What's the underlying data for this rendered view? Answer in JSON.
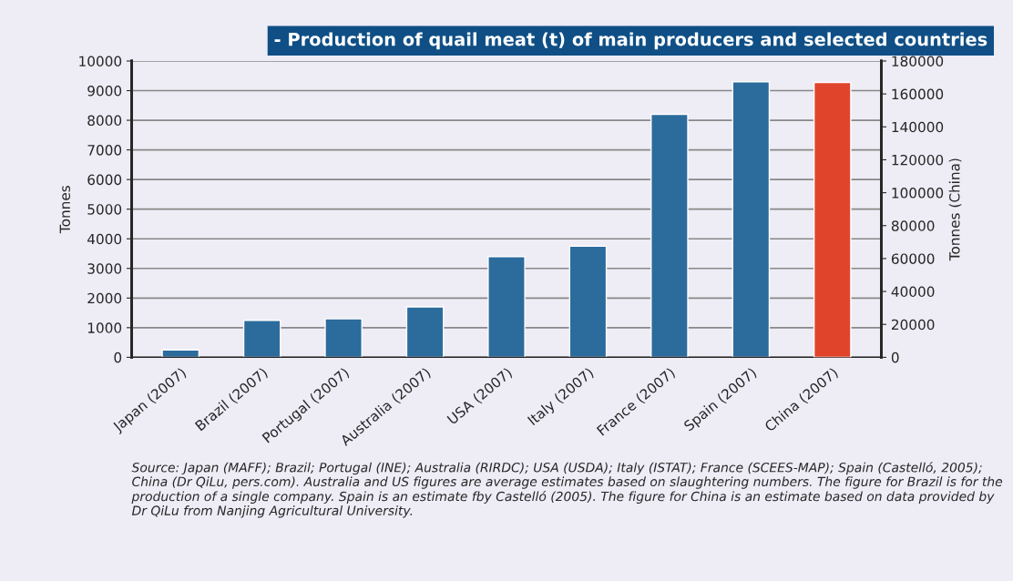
{
  "chart_data": {
    "type": "bar",
    "title": "- Production of quail meat (t) of main producers and selected countries",
    "categories": [
      "Japan (2007)",
      "Brazil (2007)",
      "Portugal (2007)",
      "Australia (2007)",
      "USA (2007)",
      "Italy (2007)",
      "France (2007)",
      "Spain (2007)",
      "China (2007)"
    ],
    "series": [
      {
        "color": "#2c6c9c",
        "values": [
          250,
          1250,
          1300,
          1700,
          3400,
          3750,
          8200,
          9300,
          null
        ]
      },
      {
        "color": "#e0452c",
        "axis": "y2",
        "values": [
          null,
          null,
          null,
          null,
          null,
          null,
          null,
          null,
          167000
        ]
      }
    ],
    "ylabel": "Tonnes",
    "y2label": "Tonnes (China)",
    "ylim": [
      0,
      10000
    ],
    "yticks": [
      0,
      1000,
      2000,
      3000,
      4000,
      5000,
      6000,
      7000,
      8000,
      9000,
      10000
    ],
    "y2lim": [
      0,
      180000
    ],
    "y2ticks": [
      0,
      20000,
      40000,
      60000,
      80000,
      100000,
      120000,
      140000,
      160000,
      180000
    ],
    "grid": "y",
    "legend": false,
    "annotations": [
      "Source: Japan (MAFF); Brazil; Portugal (INE); Australia (RIRDC); USA (USDA); Italy (ISTAT); France (SCEES-MAP); Spain (Castelló, 2005); China (Dr QiLu, pers.com). Australia and US figures are average estimates based on slaughtering numbers. The figure for Brazil is for the production of a single company. Spain is an estimate fby Castelló (2005). The figure for China is an estimate based on data provided by Dr QiLu from Nanjing Agricultural University."
    ]
  }
}
